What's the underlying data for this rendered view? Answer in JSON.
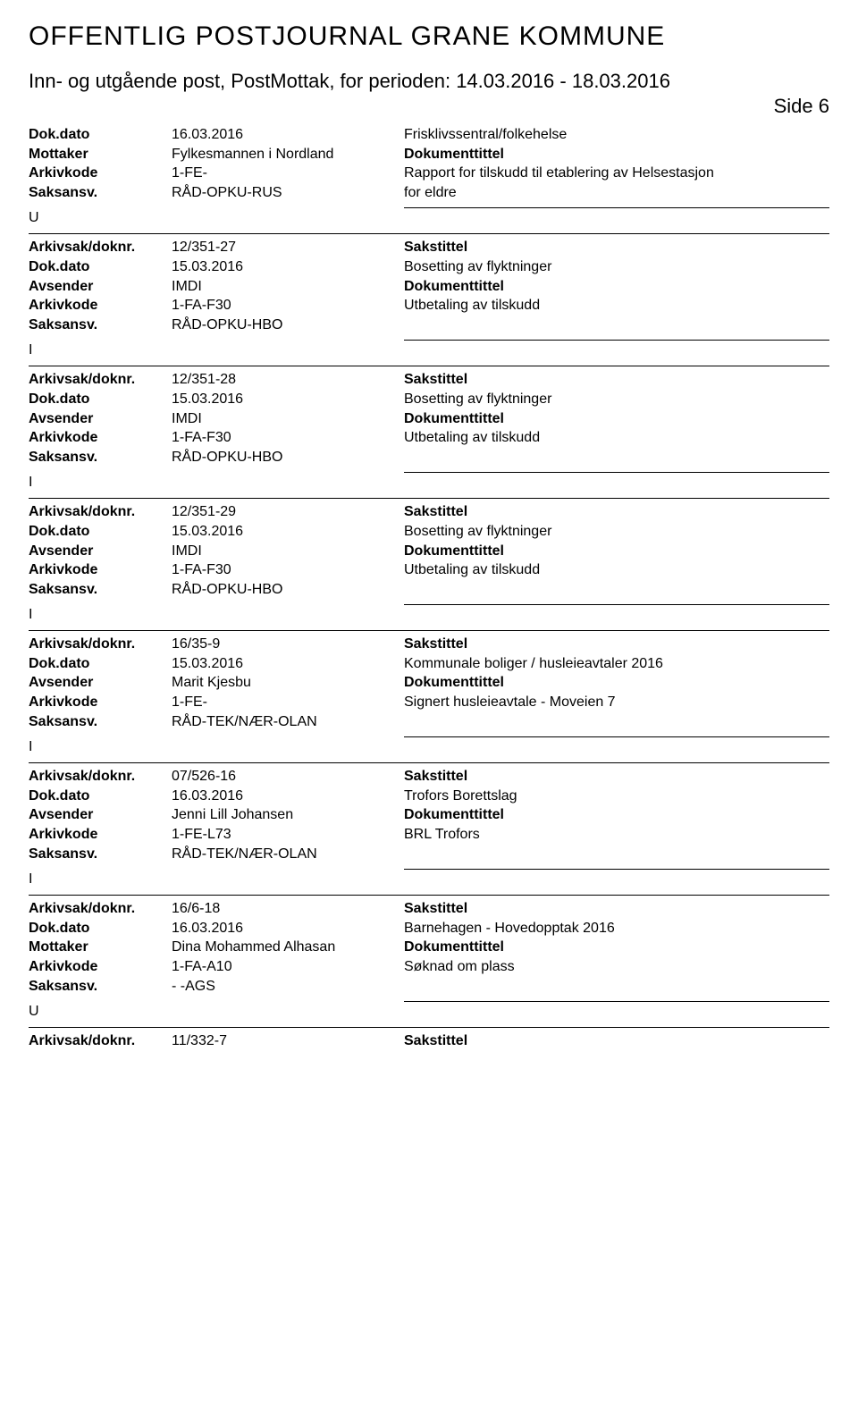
{
  "header": {
    "title": "OFFENTLIG POSTJOURNAL GRANE KOMMUNE",
    "subtitle": "Inn- og utgående post, PostMottak, for perioden: 14.03.2016 - 18.03.2016",
    "side": "Side 6"
  },
  "labels": {
    "dokdato": "Dok.dato",
    "mottaker": "Mottaker",
    "avsender": "Avsender",
    "arkivkode": "Arkivkode",
    "saksansv": "Saksansv.",
    "arkivsak": "Arkivsak/doknr.",
    "sakstittel": "Sakstittel",
    "dokumenttittel": "Dokumenttittel"
  },
  "entries": [
    {
      "type": "",
      "topRows": [
        {
          "label": "dokdato",
          "val1": "16.03.2016",
          "val2": "Frisklivssentral/folkehelse"
        },
        {
          "label": "mottaker",
          "val1": "Fylkesmannen i Nordland",
          "val2_bold": "Dokumenttittel"
        },
        {
          "label": "arkivkode",
          "val1": "1-FE-",
          "val2": "Rapport for tilskudd til etablering av Helsestasjon"
        },
        {
          "label": "saksansv",
          "val1": "RÅD-OPKU-RUS",
          "val2": "for eldre"
        }
      ]
    },
    {
      "type": "U",
      "arkiv": "12/351-27",
      "rows": [
        {
          "label": "dokdato",
          "val1": "15.03.2016",
          "val2": "Bosetting av flyktninger"
        },
        {
          "label": "avsender",
          "val1": "IMDI",
          "val2_bold": "Dokumenttittel"
        },
        {
          "label": "arkivkode",
          "val1": "1-FA-F30",
          "val2": "Utbetaling av tilskudd"
        },
        {
          "label": "saksansv",
          "val1": "RÅD-OPKU-HBO",
          "val2": ""
        }
      ]
    },
    {
      "type": "I",
      "arkiv": "12/351-28",
      "rows": [
        {
          "label": "dokdato",
          "val1": "15.03.2016",
          "val2": "Bosetting av flyktninger"
        },
        {
          "label": "avsender",
          "val1": "IMDI",
          "val2_bold": "Dokumenttittel"
        },
        {
          "label": "arkivkode",
          "val1": "1-FA-F30",
          "val2": "Utbetaling av tilskudd"
        },
        {
          "label": "saksansv",
          "val1": "RÅD-OPKU-HBO",
          "val2": ""
        }
      ]
    },
    {
      "type": "I",
      "arkiv": "12/351-29",
      "rows": [
        {
          "label": "dokdato",
          "val1": "15.03.2016",
          "val2": "Bosetting av flyktninger"
        },
        {
          "label": "avsender",
          "val1": "IMDI",
          "val2_bold": "Dokumenttittel"
        },
        {
          "label": "arkivkode",
          "val1": "1-FA-F30",
          "val2": "Utbetaling av tilskudd"
        },
        {
          "label": "saksansv",
          "val1": "RÅD-OPKU-HBO",
          "val2": ""
        }
      ]
    },
    {
      "type": "I",
      "arkiv": "16/35-9",
      "rows": [
        {
          "label": "dokdato",
          "val1": "15.03.2016",
          "val2": "Kommunale boliger / husleieavtaler 2016"
        },
        {
          "label": "avsender",
          "val1": "Marit Kjesbu",
          "val2_bold": "Dokumenttittel"
        },
        {
          "label": "arkivkode",
          "val1": "1-FE-",
          "val2": "Signert husleieavtale - Moveien 7"
        },
        {
          "label": "saksansv",
          "val1": "RÅD-TEK/NÆR-OLAN",
          "val2": ""
        }
      ]
    },
    {
      "type": "I",
      "arkiv": "07/526-16",
      "rows": [
        {
          "label": "dokdato",
          "val1": "16.03.2016",
          "val2": "Trofors Borettslag"
        },
        {
          "label": "avsender",
          "val1": "Jenni Lill Johansen",
          "val2_bold": "Dokumenttittel"
        },
        {
          "label": "arkivkode",
          "val1": "1-FE-L73",
          "val2": "BRL Trofors"
        },
        {
          "label": "saksansv",
          "val1": "RÅD-TEK/NÆR-OLAN",
          "val2": ""
        }
      ]
    },
    {
      "type": "I",
      "arkiv": "16/6-18",
      "rows": [
        {
          "label": "dokdato",
          "val1": "16.03.2016",
          "val2": "Barnehagen - Hovedopptak 2016"
        },
        {
          "label": "mottaker",
          "val1": "Dina Mohammed Alhasan",
          "val2_bold": "Dokumenttittel"
        },
        {
          "label": "arkivkode",
          "val1": "1-FA-A10",
          "val2": "Søknad om plass"
        },
        {
          "label": "saksansv",
          "val1": "- -AGS",
          "val2": ""
        }
      ]
    },
    {
      "type": "U",
      "arkiv": "11/332-7",
      "rows": []
    }
  ]
}
